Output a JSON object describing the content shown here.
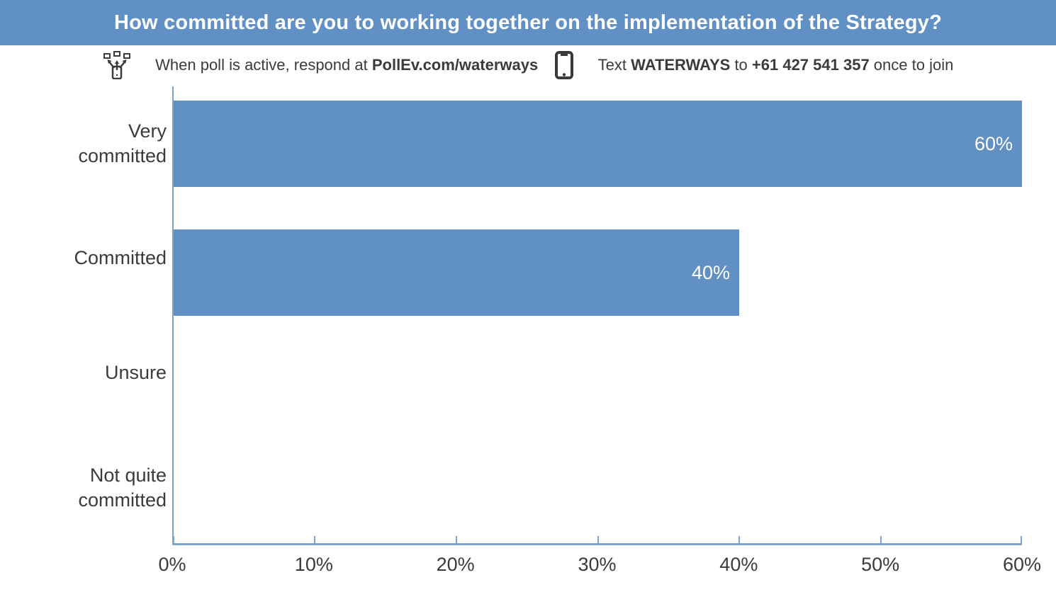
{
  "header": {
    "title": "How committed are you to working together on the implementation of the Strategy?"
  },
  "instructions": {
    "web_prefix": "When poll is active, respond at ",
    "web_url": "PollEv.com/waterways",
    "sms_prefix": "Text ",
    "sms_keyword": "WATERWAYS",
    "sms_connector": " to ",
    "sms_number": "+61 427 541 357",
    "sms_suffix": " once to join"
  },
  "icons": {
    "devices": "respond-devices-icon",
    "phone": "mobile-phone-icon"
  },
  "chart_data": {
    "type": "bar",
    "orientation": "horizontal",
    "title": "How committed are you to working together on the implementation of the Strategy?",
    "categories": [
      "Very committed",
      "Committed",
      "Unsure",
      "Not quite committed"
    ],
    "values": [
      60,
      40,
      0,
      0
    ],
    "value_suffix": "%",
    "xlabel": "",
    "ylabel": "",
    "xlim": [
      0,
      60
    ],
    "x_ticks": [
      "0%",
      "10%",
      "20%",
      "30%",
      "40%",
      "50%",
      "60%"
    ],
    "grid": false,
    "legend": "none",
    "colors": {
      "bar": "#6191C4",
      "axis": "#7CA4CC",
      "header_bg": "#6191C4",
      "text": "#3B3B3B",
      "value_label": "#FFFFFF"
    }
  }
}
